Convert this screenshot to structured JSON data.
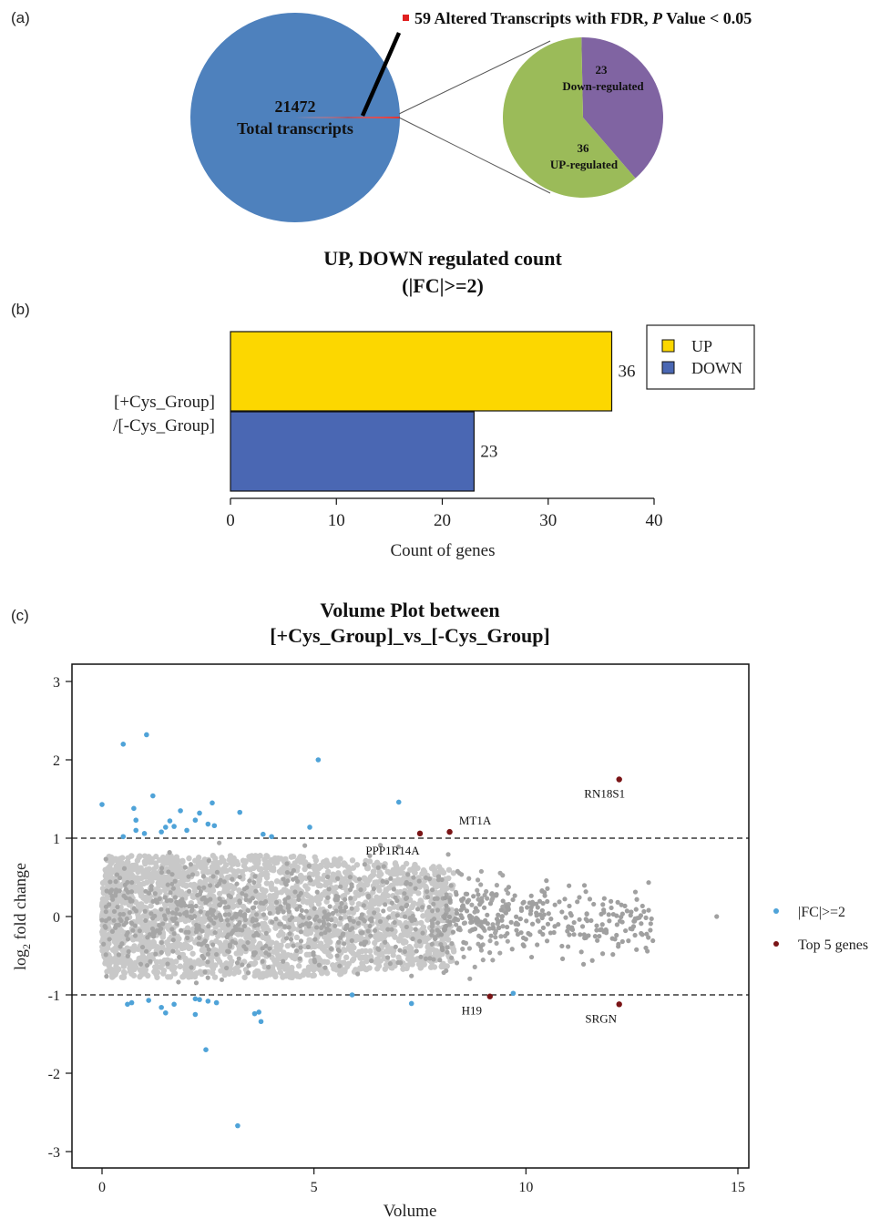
{
  "panel_labels": [
    "(a)",
    "(b)",
    "(c)"
  ],
  "chart_data": [
    {
      "type": "pie",
      "panel": "(a)",
      "annotation_prefix": "59 Altered Transcripts with FDR, ",
      "annotation_italic": "P",
      "annotation_suffix": " Value < 0.05",
      "main_pie": {
        "total_value": "21472",
        "total_label": "Total transcripts",
        "slices": [
          {
            "label": "Total transcripts",
            "value": 21472,
            "color": "#4e81bd"
          },
          {
            "label": "Altered Transcripts",
            "value": 59,
            "color": "#e03030"
          }
        ]
      },
      "sub_pie": {
        "slices": [
          {
            "value": 23,
            "label": "Down-regulated",
            "color": "#8064a2"
          },
          {
            "value": 36,
            "label": "UP-regulated",
            "color": "#9bbb59"
          }
        ]
      }
    },
    {
      "type": "bar",
      "panel": "(b)",
      "title_line1": "UP, DOWN regulated count",
      "title_line2": "(|FC|>=2)",
      "category_label_line1": "[+Cys_Group]",
      "category_label_line2": "/[-Cys_Group]",
      "series": [
        {
          "name": "UP",
          "value": 36,
          "color": "#fcd700"
        },
        {
          "name": "DOWN",
          "value": 23,
          "color": "#4a67b3"
        }
      ],
      "xlabel": "Count of genes",
      "xlim": [
        0,
        40
      ],
      "xticks": [
        0,
        10,
        20,
        30,
        40
      ],
      "legend_position": "right"
    },
    {
      "type": "scatter",
      "panel": "(c)",
      "title_line1": "Volume Plot between",
      "title_line2": "[+Cys_Group]_vs_[-Cys_Group]",
      "xlabel": "Volume",
      "ylabel_main": "log",
      "ylabel_sub": "2",
      "ylabel_rest": " fold change",
      "xlim": [
        -0.7,
        15.2
      ],
      "ylim": [
        -3.2,
        3.2
      ],
      "xticks": [
        0,
        5,
        10,
        15
      ],
      "yticks": [
        3,
        2,
        1,
        0,
        -1,
        -2,
        -3
      ],
      "threshold_lines": [
        1,
        -1
      ],
      "legend": [
        {
          "label": "|FC|>=2",
          "color": "#4fa3d8"
        },
        {
          "label": "Top 5 genes",
          "color": "#7a1416"
        }
      ],
      "fc_points": [
        [
          0.0,
          1.43
        ],
        [
          0.5,
          2.2
        ],
        [
          1.05,
          2.32
        ],
        [
          0.75,
          1.38
        ],
        [
          1.2,
          1.54
        ],
        [
          0.8,
          1.23
        ],
        [
          0.8,
          1.1
        ],
        [
          0.5,
          1.02
        ],
        [
          1.0,
          1.06
        ],
        [
          1.6,
          1.22
        ],
        [
          1.7,
          1.15
        ],
        [
          1.85,
          1.35
        ],
        [
          1.5,
          1.14
        ],
        [
          1.4,
          1.08
        ],
        [
          2.0,
          1.1
        ],
        [
          2.2,
          1.23
        ],
        [
          2.3,
          1.32
        ],
        [
          2.5,
          1.18
        ],
        [
          2.6,
          1.45
        ],
        [
          2.65,
          1.16
        ],
        [
          3.25,
          1.33
        ],
        [
          3.8,
          1.05
        ],
        [
          4.0,
          1.02
        ],
        [
          4.9,
          1.14
        ],
        [
          5.1,
          2.0
        ],
        [
          7.0,
          1.46
        ],
        [
          0.7,
          -1.1
        ],
        [
          1.1,
          -1.07
        ],
        [
          1.4,
          -1.16
        ],
        [
          1.5,
          -1.23
        ],
        [
          1.7,
          -1.12
        ],
        [
          2.2,
          -1.05
        ],
        [
          2.2,
          -1.25
        ],
        [
          2.5,
          -1.08
        ],
        [
          2.7,
          -1.1
        ],
        [
          2.45,
          -1.7
        ],
        [
          3.2,
          -2.67
        ],
        [
          3.6,
          -1.24
        ],
        [
          3.7,
          -1.22
        ],
        [
          3.75,
          -1.34
        ],
        [
          5.9,
          -1.0
        ],
        [
          7.3,
          -1.11
        ],
        [
          9.7,
          -0.98
        ],
        [
          0.6,
          -1.12
        ],
        [
          2.3,
          -1.06
        ]
      ],
      "top5": [
        {
          "name": "RN18S1",
          "x": 12.2,
          "y": 1.75
        },
        {
          "name": "MT1A",
          "x": 8.2,
          "y": 1.08
        },
        {
          "name": "PPP1R14A",
          "x": 7.5,
          "y": 1.06
        },
        {
          "name": "H19",
          "x": 9.15,
          "y": -1.02
        },
        {
          "name": "SRGN",
          "x": 12.2,
          "y": -1.12
        }
      ],
      "top5_label_offsets": "see script"
    }
  ]
}
